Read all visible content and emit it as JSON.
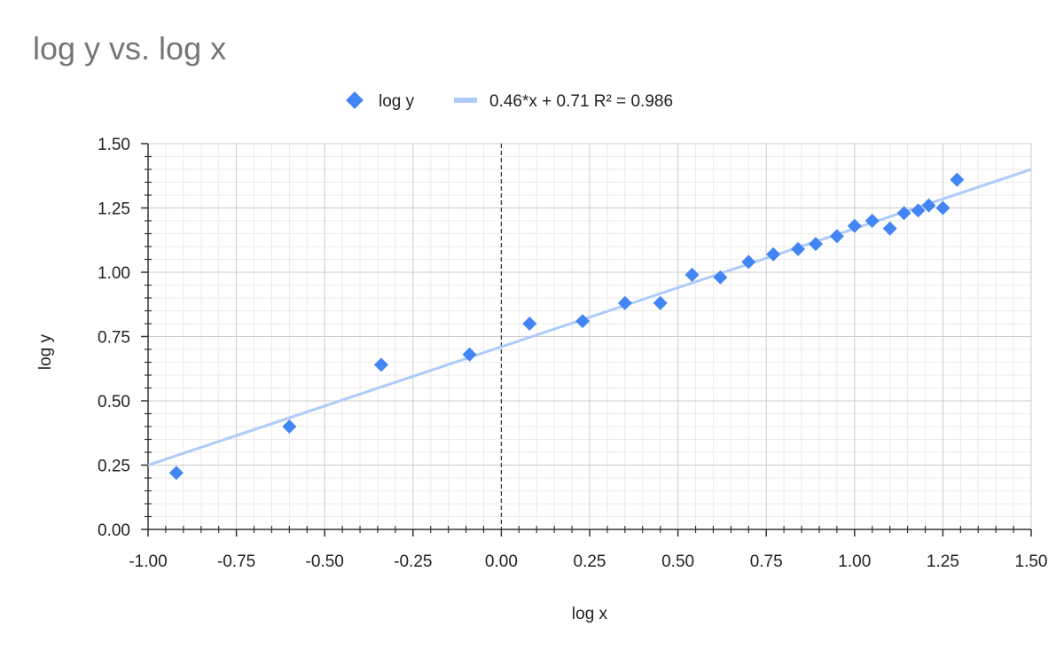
{
  "chart_data": {
    "type": "scatter",
    "title": "log y vs. log x",
    "xlabel": "log x",
    "ylabel": "log y",
    "xlim": [
      -1.0,
      1.5
    ],
    "ylim": [
      0.0,
      1.5
    ],
    "x_ticks": [
      "-1.00",
      "-0.75",
      "-0.50",
      "-0.25",
      "0.00",
      "0.25",
      "0.50",
      "0.75",
      "1.00",
      "1.25",
      "1.50"
    ],
    "y_ticks": [
      "0.00",
      "0.25",
      "0.50",
      "0.75",
      "1.00",
      "1.25",
      "1.50"
    ],
    "grid": true,
    "legend_position": "top-center",
    "series": [
      {
        "name": "log y",
        "color": "#4285f4",
        "marker": "diamond",
        "points": [
          [
            -0.92,
            0.22
          ],
          [
            -0.6,
            0.4
          ],
          [
            -0.34,
            0.64
          ],
          [
            -0.09,
            0.68
          ],
          [
            0.08,
            0.8
          ],
          [
            0.23,
            0.81
          ],
          [
            0.35,
            0.88
          ],
          [
            0.45,
            0.88
          ],
          [
            0.54,
            0.99
          ],
          [
            0.62,
            0.98
          ],
          [
            0.7,
            1.04
          ],
          [
            0.77,
            1.07
          ],
          [
            0.84,
            1.09
          ],
          [
            0.89,
            1.11
          ],
          [
            0.95,
            1.14
          ],
          [
            1.0,
            1.18
          ],
          [
            1.05,
            1.2
          ],
          [
            1.1,
            1.17
          ],
          [
            1.14,
            1.23
          ],
          [
            1.18,
            1.24
          ],
          [
            1.21,
            1.26
          ],
          [
            1.25,
            1.25
          ],
          [
            1.29,
            1.36
          ]
        ]
      }
    ],
    "trendline": {
      "label": "0.46*x + 0.71 R² = 0.986",
      "slope": 0.46,
      "intercept": 0.71,
      "color": "#aecbfa"
    }
  }
}
